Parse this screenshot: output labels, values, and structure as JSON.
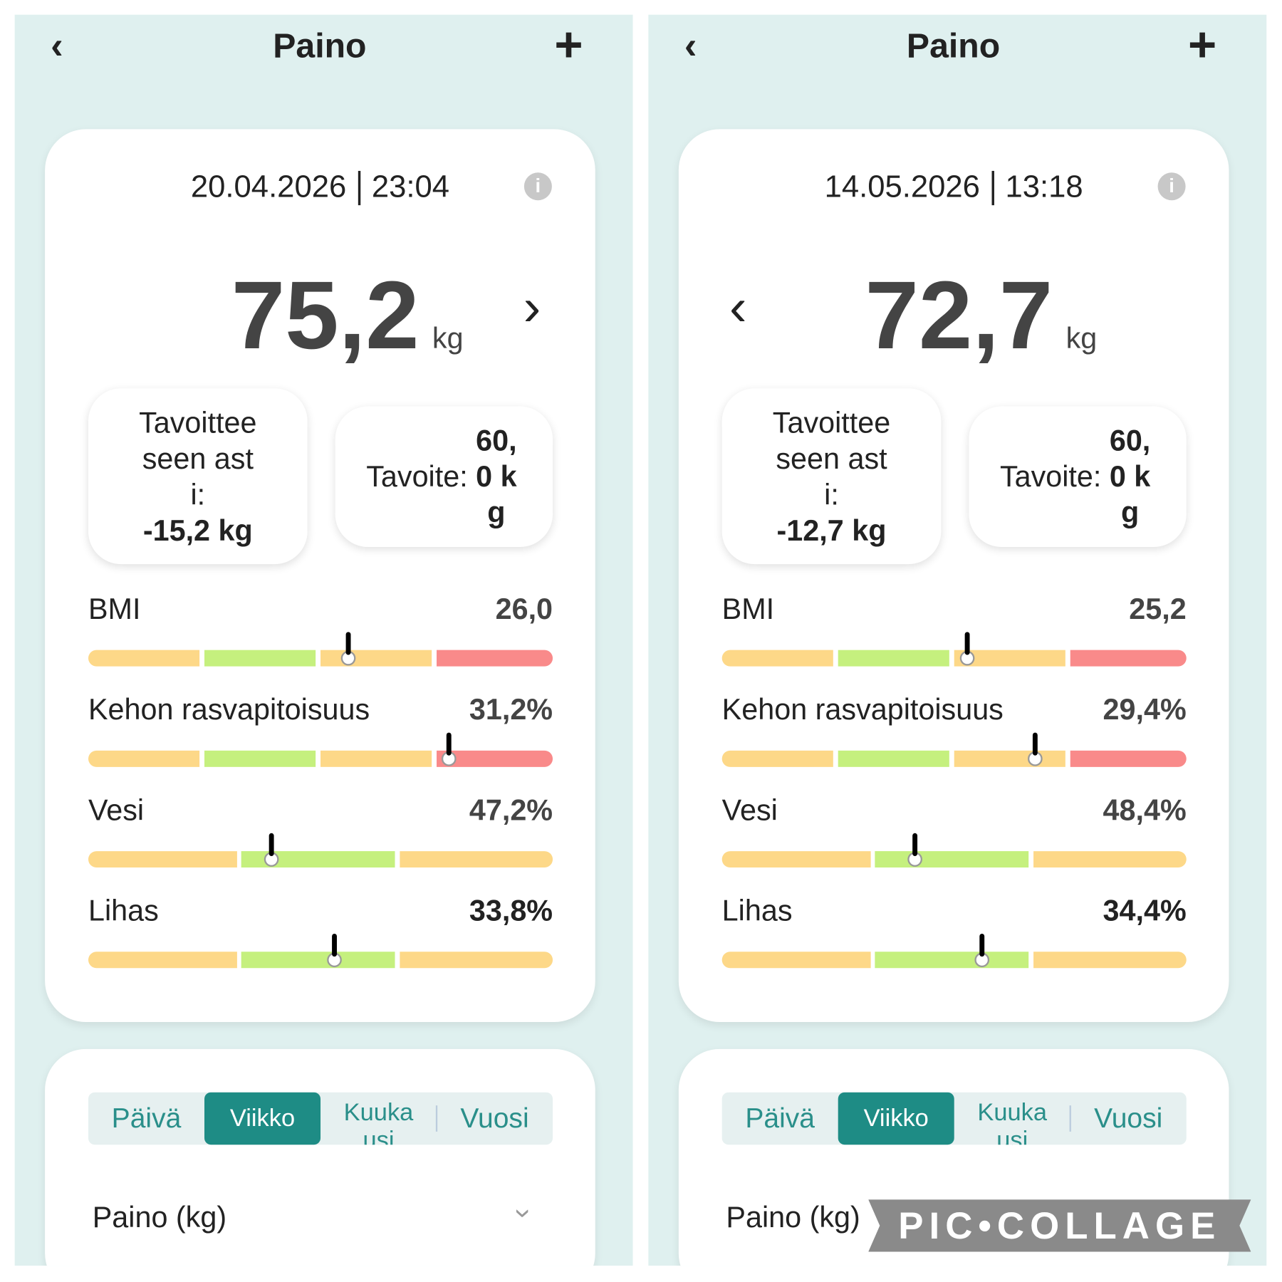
{
  "panels": [
    {
      "header": {
        "title": "Paino"
      },
      "date": "20.04.2026",
      "time": "23:04",
      "weight": "75,2",
      "unit": "kg",
      "goal_remaining": {
        "label": "Tavoitteeseen asti:",
        "value": "-15,2 kg"
      },
      "goal": {
        "label": "Tavoite:",
        "value": "60,0 kg"
      },
      "metrics": [
        {
          "name": "BMI",
          "value": "26,0"
        },
        {
          "name": "Kehon rasvapitoisuus",
          "value": "31,2%"
        },
        {
          "name": "Vesi",
          "value": "47,2%"
        },
        {
          "name": "Lihas",
          "value": "33,8%"
        }
      ],
      "tabs": [
        "Päivä",
        "Viikko",
        "Kuukausi",
        "Vuosi"
      ],
      "chart_label": "Paino (kg)"
    },
    {
      "header": {
        "title": "Paino"
      },
      "date": "14.05.2026",
      "time": "13:18",
      "weight": "72,7",
      "unit": "kg",
      "goal_remaining": {
        "label": "Tavoitteeseen asti:",
        "value": "-12,7 kg"
      },
      "goal": {
        "label": "Tavoite:",
        "value": "60,0 kg"
      },
      "metrics": [
        {
          "name": "BMI",
          "value": "25,2"
        },
        {
          "name": "Kehon rasvapitoisuus",
          "value": "29,4%"
        },
        {
          "name": "Vesi",
          "value": "48,4%"
        },
        {
          "name": "Lihas",
          "value": "34,4%"
        }
      ],
      "tabs": [
        "Päivä",
        "Viikko",
        "Kuukausi",
        "Vuosi"
      ],
      "chart_label": "Paino (kg)"
    }
  ],
  "watermark": "PIC•COLLAGE"
}
